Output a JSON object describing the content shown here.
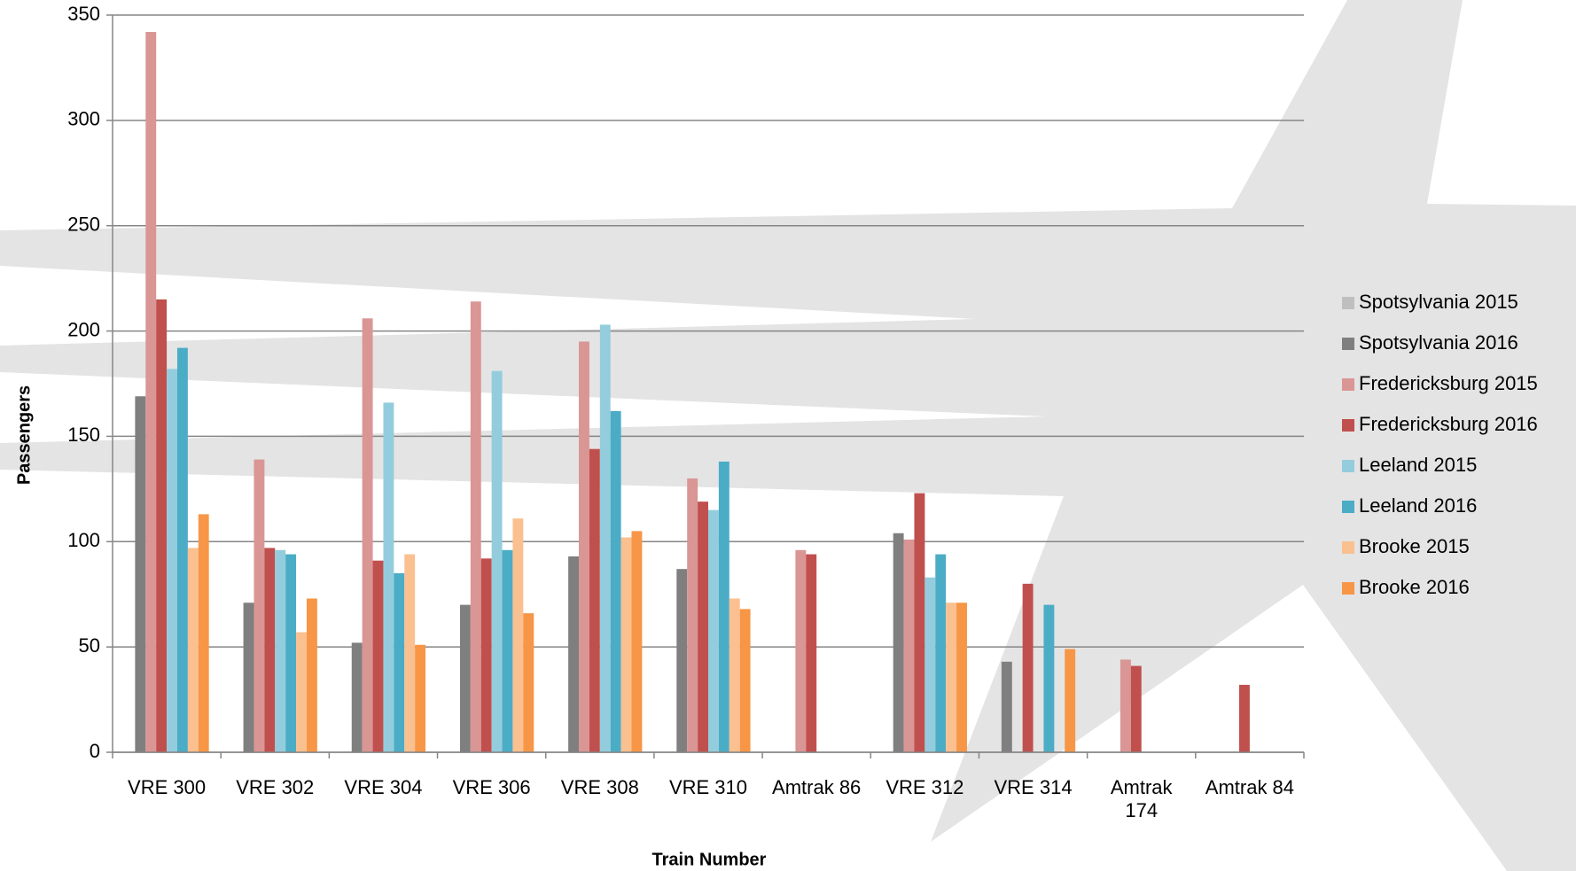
{
  "chart_data": {
    "type": "bar",
    "x_label": "Train Number",
    "y_label": "Passengers",
    "categories": [
      "VRE 300",
      "VRE 302",
      "VRE 304",
      "VRE 306",
      "VRE 308",
      "VRE 310",
      "Amtrak 86",
      "VRE 312",
      "VRE 314",
      "Amtrak 174",
      "Amtrak 84"
    ],
    "series": [
      {
        "name": "Spotsylvania 2015",
        "color": "#bfbfbf",
        "values": [
          null,
          null,
          null,
          null,
          null,
          null,
          null,
          null,
          null,
          null,
          null
        ]
      },
      {
        "name": "Spotsylvania 2016",
        "color": "#7f7f7f",
        "values": [
          169,
          71,
          52,
          70,
          93,
          87,
          null,
          104,
          43,
          null,
          null
        ]
      },
      {
        "name": "Fredericksburg 2015",
        "color": "#d99694",
        "values": [
          342,
          139,
          206,
          214,
          195,
          130,
          96,
          101,
          null,
          44,
          null
        ]
      },
      {
        "name": "Fredericksburg 2016",
        "color": "#c0504d",
        "values": [
          215,
          97,
          91,
          92,
          144,
          119,
          94,
          123,
          80,
          41,
          32
        ]
      },
      {
        "name": "Leeland 2015",
        "color": "#93cddd",
        "values": [
          182,
          96,
          166,
          181,
          203,
          115,
          null,
          83,
          null,
          null,
          null
        ]
      },
      {
        "name": "Leeland 2016",
        "color": "#4bacc6",
        "values": [
          192,
          94,
          85,
          96,
          162,
          138,
          null,
          94,
          70,
          null,
          null
        ]
      },
      {
        "name": "Brooke 2015",
        "color": "#fac090",
        "values": [
          97,
          57,
          94,
          111,
          102,
          73,
          null,
          71,
          null,
          null,
          null
        ]
      },
      {
        "name": "Brooke 2016",
        "color": "#f79646",
        "values": [
          113,
          73,
          51,
          66,
          105,
          68,
          null,
          71,
          49,
          null,
          null
        ]
      }
    ],
    "ylim": [
      0,
      350
    ],
    "yticks": [
      0,
      50,
      100,
      150,
      200,
      250,
      300,
      350
    ],
    "grid": true,
    "legend": "right"
  }
}
